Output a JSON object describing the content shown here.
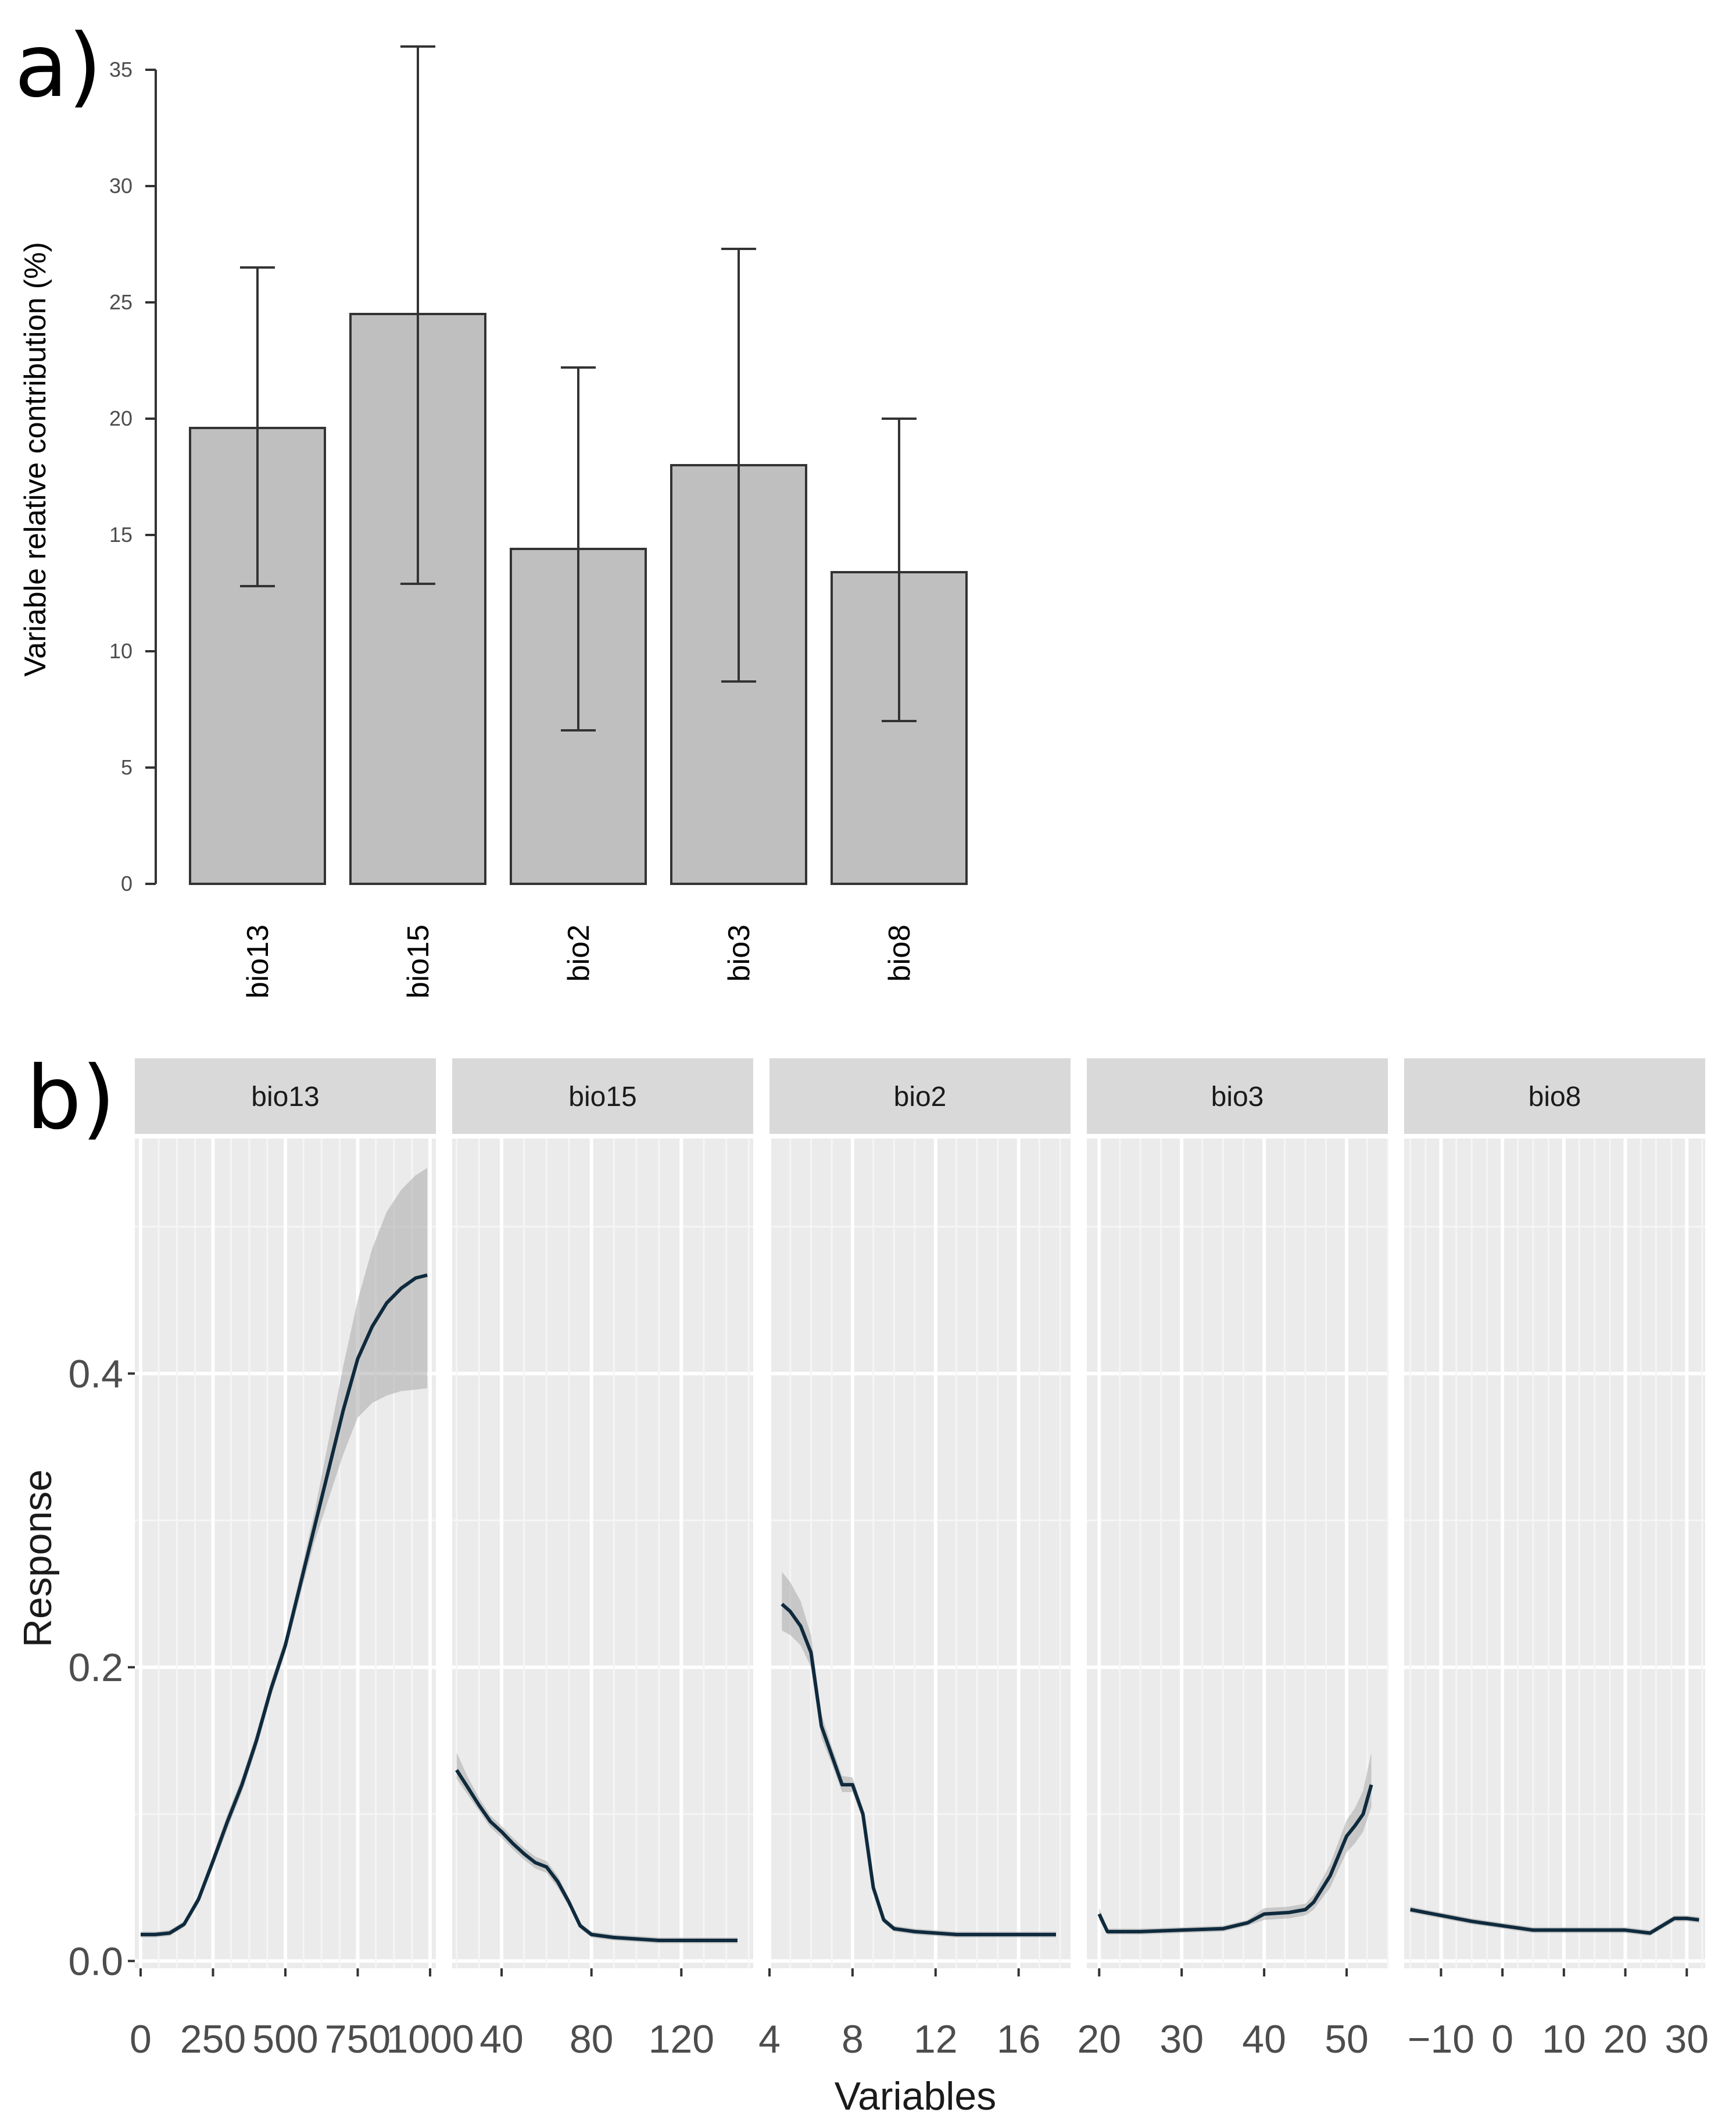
{
  "panel_a": {
    "label": "a)",
    "chart_data": {
      "type": "bar",
      "ylabel": "Variable relative contribution (%)",
      "xlabel": "",
      "ylim": [
        0,
        36
      ],
      "yticks": [
        0,
        5,
        10,
        15,
        20,
        25,
        30,
        35
      ],
      "categories": [
        "bio13",
        "bio15",
        "bio2",
        "bio3",
        "bio8"
      ],
      "values": [
        19.6,
        24.5,
        14.4,
        18.0,
        13.4
      ],
      "error_low": [
        12.8,
        12.9,
        6.6,
        8.7,
        7.0
      ],
      "error_high": [
        26.5,
        36.0,
        22.2,
        27.3,
        20.0
      ],
      "bar_color": "#bfbfbf",
      "grid": false
    }
  },
  "panel_b": {
    "label": "b)",
    "chart_data": {
      "type": "line",
      "xlabel": "Variables",
      "ylabel": "Response",
      "ylim": [
        -0.005,
        0.56
      ],
      "yticks": [
        0.0,
        0.2,
        0.4
      ],
      "ytick_labels": [
        "0.0",
        "0.2",
        "0.4"
      ],
      "grid": true,
      "panel_background": "#ebebeb",
      "strip_background": "#d9d9d9",
      "line_color": "#0f2a3d",
      "ribbon_color": "#a9a9a9",
      "facets": [
        {
          "name": "bio13",
          "xlim": [
            -20,
            1020
          ],
          "xticks": [
            0,
            250,
            500,
            750,
            1000
          ],
          "x": [
            0,
            50,
            100,
            150,
            200,
            250,
            300,
            350,
            400,
            450,
            500,
            550,
            600,
            650,
            700,
            750,
            800,
            850,
            900,
            950,
            990
          ],
          "y": [
            0.018,
            0.018,
            0.019,
            0.025,
            0.042,
            0.068,
            0.095,
            0.12,
            0.15,
            0.185,
            0.215,
            0.255,
            0.295,
            0.335,
            0.375,
            0.41,
            0.432,
            0.448,
            0.458,
            0.465,
            0.467
          ],
          "lower": [
            0.016,
            0.016,
            0.017,
            0.023,
            0.039,
            0.064,
            0.09,
            0.115,
            0.145,
            0.18,
            0.21,
            0.248,
            0.285,
            0.315,
            0.345,
            0.37,
            0.38,
            0.385,
            0.388,
            0.389,
            0.39
          ],
          "upper": [
            0.02,
            0.02,
            0.021,
            0.027,
            0.045,
            0.072,
            0.1,
            0.125,
            0.155,
            0.19,
            0.22,
            0.262,
            0.305,
            0.355,
            0.405,
            0.45,
            0.485,
            0.51,
            0.525,
            0.535,
            0.54
          ]
        },
        {
          "name": "bio15",
          "xlim": [
            18,
            152
          ],
          "xticks": [
            40,
            80,
            120
          ],
          "x": [
            20,
            25,
            30,
            35,
            40,
            45,
            50,
            55,
            60,
            65,
            70,
            75,
            80,
            90,
            100,
            110,
            120,
            130,
            140,
            145
          ],
          "y": [
            0.13,
            0.118,
            0.106,
            0.095,
            0.088,
            0.08,
            0.073,
            0.067,
            0.064,
            0.054,
            0.04,
            0.024,
            0.018,
            0.016,
            0.015,
            0.014,
            0.014,
            0.014,
            0.014,
            0.014
          ],
          "lower": [
            0.124,
            0.113,
            0.102,
            0.091,
            0.084,
            0.076,
            0.069,
            0.063,
            0.06,
            0.05,
            0.037,
            0.022,
            0.016,
            0.014,
            0.013,
            0.012,
            0.012,
            0.012,
            0.012,
            0.012
          ],
          "upper": [
            0.142,
            0.125,
            0.111,
            0.099,
            0.092,
            0.084,
            0.077,
            0.071,
            0.068,
            0.058,
            0.043,
            0.026,
            0.02,
            0.018,
            0.017,
            0.016,
            0.016,
            0.016,
            0.016,
            0.016
          ]
        },
        {
          "name": "bio2",
          "xlim": [
            4,
            18.5
          ],
          "xticks": [
            4,
            8,
            12,
            16
          ],
          "x": [
            4.6,
            5.0,
            5.5,
            6.0,
            6.5,
            7.0,
            7.5,
            8.0,
            8.5,
            9.0,
            9.5,
            10.0,
            11.0,
            12.0,
            13.0,
            14.0,
            15.0,
            16.0,
            17.0,
            17.8
          ],
          "y": [
            0.243,
            0.238,
            0.228,
            0.21,
            0.16,
            0.14,
            0.12,
            0.12,
            0.1,
            0.05,
            0.028,
            0.022,
            0.02,
            0.019,
            0.018,
            0.018,
            0.018,
            0.018,
            0.018,
            0.018
          ],
          "lower": [
            0.225,
            0.222,
            0.215,
            0.2,
            0.152,
            0.134,
            0.115,
            0.115,
            0.096,
            0.047,
            0.026,
            0.02,
            0.018,
            0.017,
            0.016,
            0.016,
            0.016,
            0.016,
            0.016,
            0.016
          ],
          "upper": [
            0.265,
            0.258,
            0.245,
            0.222,
            0.168,
            0.146,
            0.126,
            0.125,
            0.104,
            0.053,
            0.03,
            0.024,
            0.022,
            0.021,
            0.02,
            0.02,
            0.02,
            0.02,
            0.02,
            0.02
          ]
        },
        {
          "name": "bio3",
          "xlim": [
            18.5,
            55
          ],
          "xticks": [
            20,
            30,
            40,
            50
          ],
          "x": [
            20,
            21,
            25,
            30,
            35,
            38,
            40,
            43,
            45,
            46,
            48,
            50,
            51,
            52,
            53
          ],
          "y": [
            0.032,
            0.02,
            0.02,
            0.021,
            0.022,
            0.026,
            0.032,
            0.033,
            0.035,
            0.04,
            0.058,
            0.085,
            0.092,
            0.1,
            0.12
          ],
          "lower": [
            0.028,
            0.018,
            0.018,
            0.019,
            0.02,
            0.024,
            0.028,
            0.029,
            0.031,
            0.035,
            0.05,
            0.074,
            0.08,
            0.088,
            0.105
          ],
          "upper": [
            0.036,
            0.022,
            0.022,
            0.023,
            0.024,
            0.028,
            0.036,
            0.037,
            0.039,
            0.045,
            0.066,
            0.096,
            0.104,
            0.116,
            0.142
          ]
        },
        {
          "name": "bio8",
          "xlim": [
            -16,
            33
          ],
          "xticks": [
            -10,
            0,
            10,
            20,
            30
          ],
          "xtick_labels": [
            "−10",
            "0",
            "10",
            "20",
            "30"
          ],
          "x": [
            -15,
            -10,
            -5,
            0,
            5,
            10,
            15,
            20,
            24,
            26,
            28,
            30,
            32
          ],
          "y": [
            0.035,
            0.031,
            0.027,
            0.024,
            0.021,
            0.021,
            0.021,
            0.021,
            0.019,
            0.024,
            0.029,
            0.029,
            0.028
          ],
          "lower": [
            0.033,
            0.029,
            0.025,
            0.022,
            0.019,
            0.019,
            0.019,
            0.019,
            0.017,
            0.022,
            0.027,
            0.027,
            0.026
          ],
          "upper": [
            0.037,
            0.033,
            0.029,
            0.026,
            0.023,
            0.023,
            0.023,
            0.023,
            0.021,
            0.026,
            0.031,
            0.031,
            0.03
          ]
        }
      ]
    }
  }
}
